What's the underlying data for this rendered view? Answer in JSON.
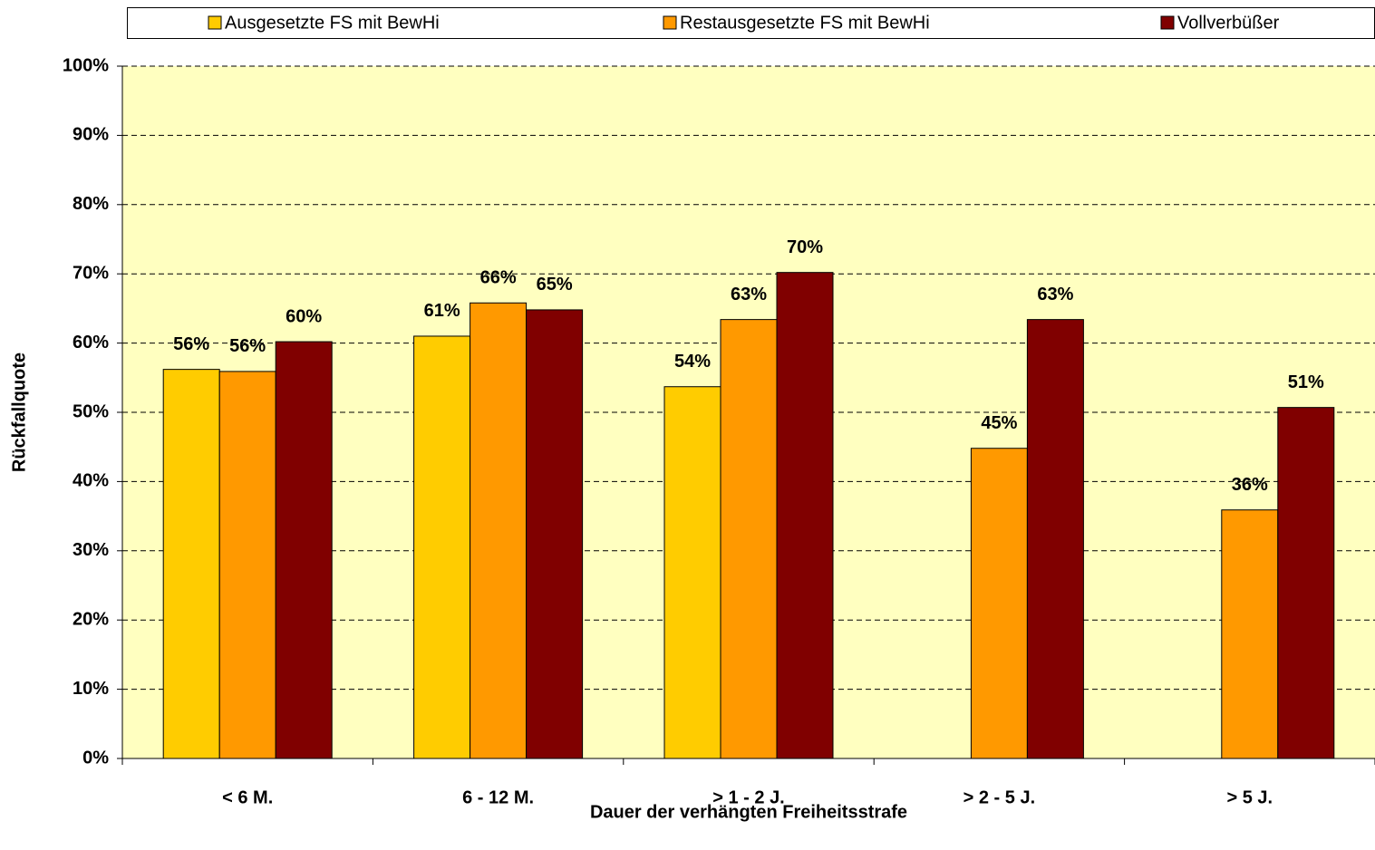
{
  "chart_data": {
    "type": "bar",
    "x_label": "Dauer der verhängten Freiheitsstrafe",
    "y_label": "Rückfallquote",
    "categories": [
      "< 6 M.",
      "6 - 12 M.",
      "> 1 - 2 J.",
      "> 2 - 5 J.",
      "> 5 J."
    ],
    "series": [
      {
        "name": "Ausgesetzte FS mit BewHi",
        "color": "#FFCC00",
        "values": [
          56.2,
          61.0,
          53.7,
          null,
          null
        ],
        "value_labels": [
          "56%",
          "61%",
          "54%",
          null,
          null
        ]
      },
      {
        "name": "Restausgesetzte FS mit BewHi",
        "color": "#FF9900",
        "values": [
          55.9,
          65.8,
          63.4,
          44.8,
          35.9
        ],
        "value_labels": [
          "56%",
          "66%",
          "63%",
          "45%",
          "36%"
        ]
      },
      {
        "name": "Vollverbüßer",
        "color": "#800000",
        "values": [
          60.2,
          64.8,
          70.2,
          63.4,
          50.7
        ],
        "value_labels": [
          "60%",
          "65%",
          "70%",
          "63%",
          "51%"
        ]
      }
    ],
    "ylim": [
      0,
      100
    ],
    "yticks": [
      {
        "value": 0,
        "label": "0%"
      },
      {
        "value": 10,
        "label": "10%"
      },
      {
        "value": 20,
        "label": "20%"
      },
      {
        "value": 30,
        "label": "30%"
      },
      {
        "value": 40,
        "label": "40%"
      },
      {
        "value": 50,
        "label": "50%"
      },
      {
        "value": 60,
        "label": "60%"
      },
      {
        "value": 70,
        "label": "70%"
      },
      {
        "value": 80,
        "label": "80%"
      },
      {
        "value": 90,
        "label": "90%"
      },
      {
        "value": 100,
        "label": "100%"
      }
    ],
    "grid": true,
    "legend": "top"
  }
}
